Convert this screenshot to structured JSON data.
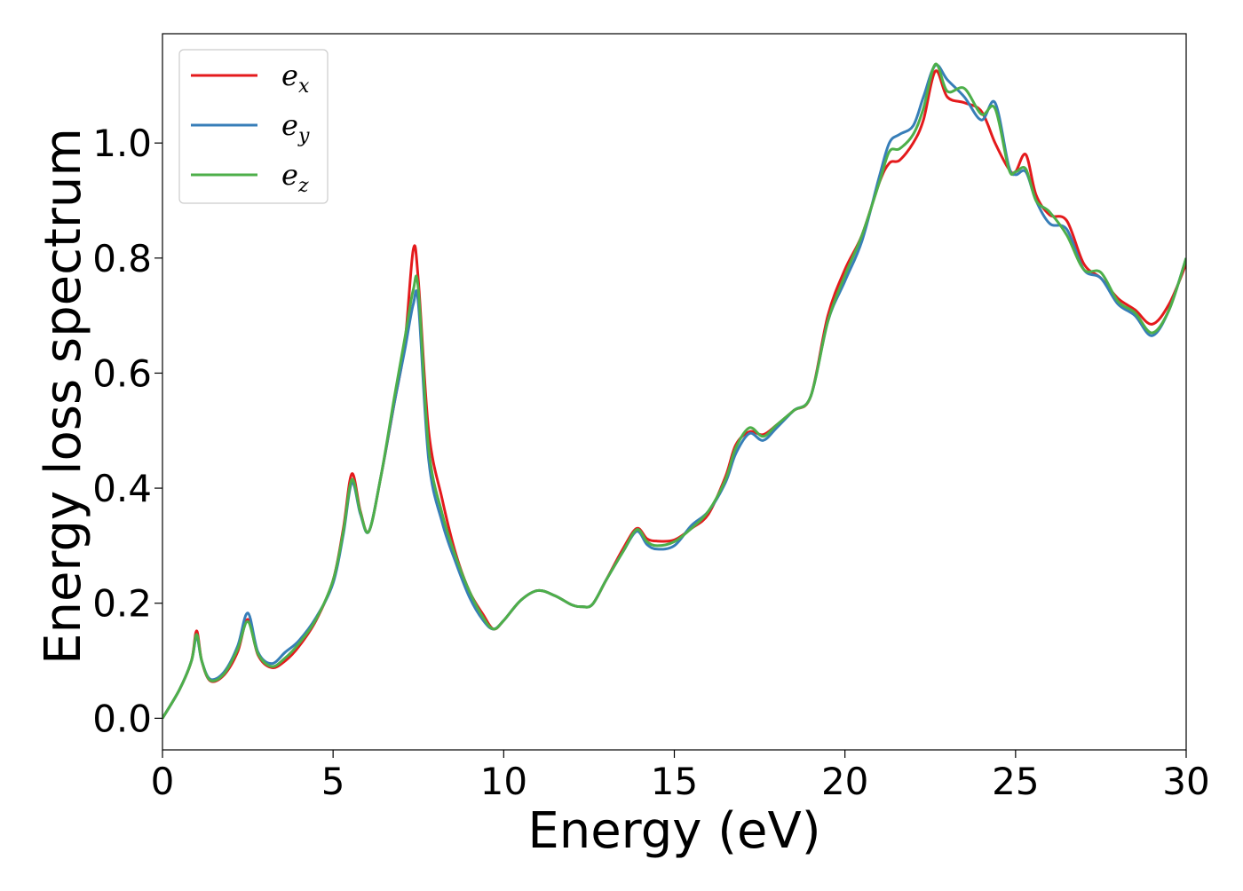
{
  "chart_data": {
    "type": "line",
    "xlabel": "Energy (eV)",
    "ylabel": "Energy loss spectrum",
    "xlim": [
      0,
      30
    ],
    "ylim": [
      -0.055,
      1.19
    ],
    "xticks": [
      0,
      5,
      10,
      15,
      20,
      25,
      30
    ],
    "xtick_labels": [
      "0",
      "5",
      "10",
      "15",
      "20",
      "25",
      "30"
    ],
    "yticks": [
      0.0,
      0.2,
      0.4,
      0.6,
      0.8,
      1.0
    ],
    "ytick_labels": [
      "0.0",
      "0.2",
      "0.4",
      "0.6",
      "0.8",
      "1.0"
    ],
    "grid": false,
    "legend_position": "top-left",
    "series": [
      {
        "name": "e_x",
        "label_base": "e",
        "label_sub": "x",
        "color": "#e41a1c",
        "x": [
          0,
          0.5,
          0.85,
          1.0,
          1.15,
          1.4,
          1.8,
          2.2,
          2.5,
          2.8,
          3.2,
          3.6,
          4.0,
          4.5,
          5.0,
          5.3,
          5.55,
          5.8,
          6.05,
          6.4,
          6.8,
          7.1,
          7.35,
          7.5,
          7.8,
          8.2,
          8.6,
          9.0,
          9.4,
          9.7,
          10.0,
          10.5,
          11.0,
          11.5,
          12.0,
          12.3,
          12.6,
          13.0,
          13.5,
          13.9,
          14.2,
          14.5,
          15.0,
          15.5,
          16.0,
          16.5,
          16.8,
          17.2,
          17.6,
          18.0,
          18.5,
          19.0,
          19.5,
          20.0,
          20.5,
          21.0,
          21.3,
          21.6,
          22.0,
          22.3,
          22.65,
          23.0,
          23.5,
          24.0,
          24.4,
          24.8,
          25.0,
          25.3,
          25.6,
          26.0,
          26.5,
          27.0,
          27.5,
          28.0,
          28.5,
          29.0,
          29.5,
          30.0
        ],
        "values": [
          0.0,
          0.05,
          0.1,
          0.152,
          0.1,
          0.065,
          0.075,
          0.115,
          0.172,
          0.11,
          0.088,
          0.1,
          0.125,
          0.17,
          0.24,
          0.33,
          0.425,
          0.36,
          0.325,
          0.42,
          0.55,
          0.65,
          0.815,
          0.76,
          0.5,
          0.38,
          0.285,
          0.22,
          0.18,
          0.155,
          0.17,
          0.205,
          0.222,
          0.213,
          0.197,
          0.194,
          0.198,
          0.24,
          0.295,
          0.33,
          0.312,
          0.308,
          0.31,
          0.33,
          0.355,
          0.42,
          0.475,
          0.498,
          0.493,
          0.51,
          0.535,
          0.56,
          0.7,
          0.78,
          0.84,
          0.93,
          0.965,
          0.97,
          1.0,
          1.04,
          1.125,
          1.08,
          1.07,
          1.055,
          1.0,
          0.955,
          0.95,
          0.98,
          0.91,
          0.875,
          0.865,
          0.79,
          0.765,
          0.73,
          0.71,
          0.685,
          0.72,
          0.79
        ]
      },
      {
        "name": "e_y",
        "label_base": "e",
        "label_sub": "y",
        "color": "#377eb8",
        "x": [
          0,
          0.5,
          0.85,
          1.0,
          1.15,
          1.4,
          1.8,
          2.2,
          2.5,
          2.8,
          3.2,
          3.6,
          4.0,
          4.5,
          5.0,
          5.3,
          5.55,
          5.8,
          6.05,
          6.4,
          6.8,
          7.1,
          7.35,
          7.5,
          7.8,
          8.2,
          8.6,
          9.0,
          9.4,
          9.7,
          10.0,
          10.5,
          11.0,
          11.5,
          12.0,
          12.3,
          12.6,
          13.0,
          13.5,
          13.9,
          14.2,
          14.5,
          15.0,
          15.5,
          16.0,
          16.5,
          16.8,
          17.2,
          17.6,
          18.0,
          18.5,
          19.0,
          19.5,
          20.0,
          20.5,
          21.0,
          21.3,
          21.6,
          22.0,
          22.3,
          22.65,
          23.0,
          23.5,
          24.0,
          24.4,
          24.8,
          25.0,
          25.3,
          25.6,
          26.0,
          26.5,
          27.0,
          27.5,
          28.0,
          28.5,
          29.0,
          29.5,
          30.0
        ],
        "values": [
          0.0,
          0.05,
          0.1,
          0.142,
          0.1,
          0.068,
          0.08,
          0.125,
          0.183,
          0.115,
          0.095,
          0.115,
          0.135,
          0.175,
          0.235,
          0.32,
          0.41,
          0.355,
          0.325,
          0.42,
          0.55,
          0.64,
          0.72,
          0.72,
          0.45,
          0.34,
          0.27,
          0.21,
          0.17,
          0.155,
          0.17,
          0.205,
          0.222,
          0.213,
          0.197,
          0.194,
          0.198,
          0.24,
          0.29,
          0.325,
          0.302,
          0.294,
          0.3,
          0.335,
          0.36,
          0.41,
          0.46,
          0.495,
          0.483,
          0.505,
          0.535,
          0.56,
          0.69,
          0.76,
          0.83,
          0.94,
          1.0,
          1.015,
          1.03,
          1.08,
          1.135,
          1.11,
          1.08,
          1.04,
          1.07,
          0.96,
          0.945,
          0.95,
          0.9,
          0.86,
          0.85,
          0.78,
          0.765,
          0.72,
          0.7,
          0.665,
          0.71,
          0.8
        ]
      },
      {
        "name": "e_z",
        "label_base": "e",
        "label_sub": "z",
        "color": "#4daf4a",
        "x": [
          0,
          0.5,
          0.85,
          1.0,
          1.15,
          1.4,
          1.8,
          2.2,
          2.5,
          2.8,
          3.2,
          3.6,
          4.0,
          4.5,
          5.0,
          5.3,
          5.55,
          5.8,
          6.05,
          6.4,
          6.8,
          7.1,
          7.35,
          7.5,
          7.8,
          8.2,
          8.6,
          9.0,
          9.4,
          9.7,
          10.0,
          10.5,
          11.0,
          11.5,
          12.0,
          12.3,
          12.6,
          13.0,
          13.5,
          13.9,
          14.2,
          14.5,
          15.0,
          15.5,
          16.0,
          16.5,
          16.8,
          17.2,
          17.6,
          18.0,
          18.5,
          19.0,
          19.5,
          20.0,
          20.5,
          21.0,
          21.3,
          21.6,
          22.0,
          22.3,
          22.65,
          23.0,
          23.5,
          24.0,
          24.4,
          24.8,
          25.0,
          25.3,
          25.6,
          26.0,
          26.5,
          27.0,
          27.5,
          28.0,
          28.5,
          29.0,
          29.5,
          30.0
        ],
        "values": [
          0.0,
          0.05,
          0.1,
          0.146,
          0.1,
          0.066,
          0.077,
          0.12,
          0.168,
          0.112,
          0.09,
          0.105,
          0.13,
          0.172,
          0.24,
          0.325,
          0.415,
          0.358,
          0.325,
          0.42,
          0.56,
          0.66,
          0.745,
          0.745,
          0.47,
          0.355,
          0.28,
          0.22,
          0.175,
          0.155,
          0.17,
          0.205,
          0.222,
          0.213,
          0.197,
          0.194,
          0.198,
          0.24,
          0.29,
          0.328,
          0.307,
          0.3,
          0.307,
          0.33,
          0.36,
          0.415,
          0.47,
          0.505,
          0.49,
          0.51,
          0.535,
          0.56,
          0.69,
          0.77,
          0.84,
          0.93,
          0.985,
          0.99,
          1.015,
          1.06,
          1.137,
          1.09,
          1.095,
          1.05,
          1.06,
          0.955,
          0.95,
          0.955,
          0.9,
          0.88,
          0.84,
          0.78,
          0.775,
          0.725,
          0.705,
          0.67,
          0.71,
          0.8
        ]
      }
    ]
  }
}
